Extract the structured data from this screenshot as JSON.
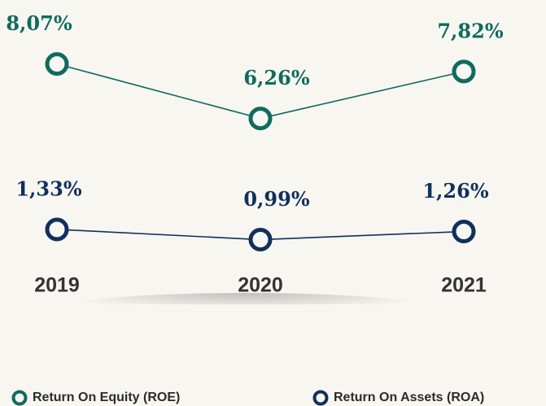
{
  "chart_data": {
    "type": "line",
    "categories": [
      "2019",
      "2020",
      "2021"
    ],
    "series": [
      {
        "name": "Return On Equity (ROE)",
        "color": "#0f6b5d",
        "values": [
          8.07,
          6.26,
          7.82
        ],
        "value_labels": [
          "8,07%",
          "6,26%",
          "7,82%"
        ]
      },
      {
        "name": "Return On Assets (ROA)",
        "color": "#11305c",
        "values": [
          1.33,
          0.99,
          1.26
        ],
        "value_labels": [
          "1,33%",
          "0,99%",
          "1,26%"
        ]
      }
    ],
    "legend": "bottom"
  }
}
